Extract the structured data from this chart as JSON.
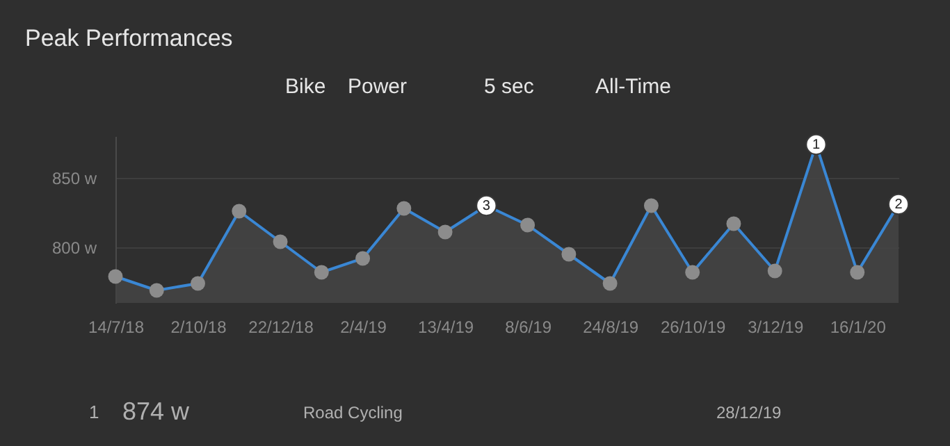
{
  "chart_data": {
    "type": "area",
    "title": "Peak Performances",
    "categories": [
      "14/7/18",
      null,
      "2/10/18",
      null,
      "22/12/18",
      null,
      "2/4/19",
      null,
      "13/4/19",
      null,
      "8/6/19",
      null,
      "24/8/19",
      null,
      "26/10/19",
      null,
      "3/12/19",
      null,
      "16/1/20",
      null
    ],
    "series": [
      {
        "color": "#3a87d4",
        "values": [
          779,
          769,
          774,
          826,
          804,
          782,
          792,
          828,
          811,
          830,
          816,
          795,
          774,
          830,
          782,
          817,
          783,
          874,
          782,
          831
        ]
      }
    ],
    "ylim": [
      760,
      880
    ],
    "yticks": [
      {
        "value": 800,
        "label": "800 w"
      },
      {
        "value": 850,
        "label": "850 w"
      }
    ],
    "grid": "y",
    "marker": "circle",
    "annotations": [
      "Bike",
      "Power",
      "5 sec",
      "All-Time",
      "1",
      "874 w",
      "Road Cycling",
      "28/12/19",
      {
        "text": "3",
        "y": 830
      },
      {
        "text": "1",
        "y": 874
      },
      {
        "text": "2",
        "y": 831
      }
    ]
  }
}
